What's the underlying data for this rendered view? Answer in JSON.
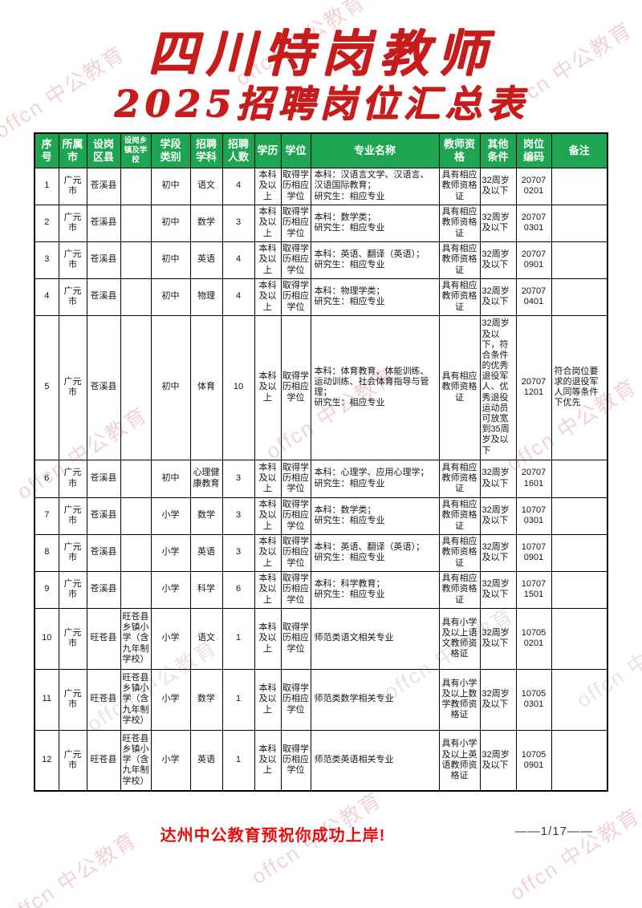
{
  "watermark": {
    "text": "offcn 中公教育"
  },
  "title": {
    "line1": "四川特岗教师",
    "line2": "2025招聘岗位汇总表",
    "color": "#c61c1c"
  },
  "table": {
    "header_bg": "#1ea552",
    "headers": [
      "序\n号",
      "所属\n市",
      "设岗\n区县",
      "设岗乡\n镇及学\n校",
      "学段\n类别",
      "招聘\n学科",
      "招聘\n人数",
      "学历",
      "学位",
      "专业名称",
      "教师资\n格",
      "其他\n条件",
      "岗位\n编码",
      "备注"
    ],
    "row_keys": [
      "no",
      "city",
      "county",
      "school",
      "level",
      "subject",
      "count",
      "edu",
      "degree",
      "major",
      "cert",
      "other",
      "code",
      "note"
    ],
    "rows": [
      {
        "no": "1",
        "city": "广元市",
        "county": "苍溪县",
        "school": "",
        "level": "初中",
        "subject": "语文",
        "count": "4",
        "edu": "本科及以上",
        "degree": "取得学历相应学位",
        "major": "本科：汉语言文学、汉语言、汉语国际教育；\n研究生：相应专业",
        "cert": "具有相应教师资格证",
        "other": "32周岁及以下",
        "code": "20707\n0201",
        "note": ""
      },
      {
        "no": "2",
        "city": "广元市",
        "county": "苍溪县",
        "school": "",
        "level": "初中",
        "subject": "数学",
        "count": "3",
        "edu": "本科及以上",
        "degree": "取得学历相应学位",
        "major": "本科：数学类；\n研究生：相应专业",
        "cert": "具有相应教师资格证",
        "other": "32周岁及以下",
        "code": "20707\n0301",
        "note": ""
      },
      {
        "no": "3",
        "city": "广元市",
        "county": "苍溪县",
        "school": "",
        "level": "初中",
        "subject": "英语",
        "count": "4",
        "edu": "本科及以上",
        "degree": "取得学历相应学位",
        "major": "本科：英语、翻译（英语）；\n研究生：相应专业",
        "cert": "具有相应教师资格证",
        "other": "32周岁及以下",
        "code": "20707\n0901",
        "note": ""
      },
      {
        "no": "4",
        "city": "广元市",
        "county": "苍溪县",
        "school": "",
        "level": "初中",
        "subject": "物理",
        "count": "4",
        "edu": "本科及以上",
        "degree": "取得学历相应学位",
        "major": "本科：物理学类；\n研究生：相应专业",
        "cert": "具有相应教师资格证",
        "other": "32周岁及以下",
        "code": "20707\n0401",
        "note": ""
      },
      {
        "no": "5",
        "city": "广元市",
        "county": "苍溪县",
        "school": "",
        "level": "初中",
        "subject": "体育",
        "count": "10",
        "edu": "本科及以上",
        "degree": "取得学历相应学位",
        "major": "本科：体育教育、体能训练、运动训练、社会体育指导与管理；\n研究生：相应专业",
        "cert": "具有相应教师资格证",
        "other": "32周岁及以下，符合条件的优秀退役军人、优秀退役运动员可放宽到35周岁及以下",
        "code": "20707\n1201",
        "note": "符合岗位要求的退役军人同等条件下优先"
      },
      {
        "no": "6",
        "city": "广元市",
        "county": "苍溪县",
        "school": "",
        "level": "初中",
        "subject": "心理健康教育",
        "count": "3",
        "edu": "本科及以上",
        "degree": "取得学历相应学位",
        "major": "本科：心理学、应用心理学；\n研究生：相应专业",
        "cert": "具有相应教师资格证",
        "other": "32周岁及以下",
        "code": "20707\n1601",
        "note": ""
      },
      {
        "no": "7",
        "city": "广元市",
        "county": "苍溪县",
        "school": "",
        "level": "小学",
        "subject": "数学",
        "count": "3",
        "edu": "本科及以上",
        "degree": "取得学历相应学位",
        "major": "本科：数学类；\n研究生：相应专业",
        "cert": "具有相应教师资格证",
        "other": "32周岁及以下",
        "code": "10707\n0301",
        "note": ""
      },
      {
        "no": "8",
        "city": "广元市",
        "county": "苍溪县",
        "school": "",
        "level": "小学",
        "subject": "英语",
        "count": "3",
        "edu": "本科及以上",
        "degree": "取得学历相应学位",
        "major": "本科：英语、翻译（英语）；\n研究生：相应专业",
        "cert": "具有相应教师资格证",
        "other": "32周岁及以下",
        "code": "10707\n0901",
        "note": ""
      },
      {
        "no": "9",
        "city": "广元市",
        "county": "苍溪县",
        "school": "",
        "level": "小学",
        "subject": "科学",
        "count": "6",
        "edu": "本科及以上",
        "degree": "取得学历相应学位",
        "major": "本科：科学教育；\n研究生：相应专业",
        "cert": "具有相应教师资格证",
        "other": "32周岁及以下",
        "code": "10707\n1501",
        "note": ""
      },
      {
        "no": "10",
        "city": "广元市",
        "county": "旺苍县",
        "school": "旺苍县乡镇小学（含九年制学校）",
        "level": "小学",
        "subject": "语文",
        "count": "1",
        "edu": "本科及以上",
        "degree": "取得学历相应学位",
        "major": "师范类语文相关专业",
        "cert": "具有小学及以上语文教师资格证",
        "other": "32周岁及以下",
        "code": "10705\n0201",
        "note": ""
      },
      {
        "no": "11",
        "city": "广元市",
        "county": "旺苍县",
        "school": "旺苍县乡镇小学（含九年制学校）",
        "level": "小学",
        "subject": "数学",
        "count": "1",
        "edu": "本科及以上",
        "degree": "取得学历相应学位",
        "major": "师范类数学相关专业",
        "cert": "具有小学及以上数学教师资格证",
        "other": "32周岁及以下",
        "code": "10705\n0301",
        "note": ""
      },
      {
        "no": "12",
        "city": "广元市",
        "county": "旺苍县",
        "school": "旺苍县乡镇小学（含九年制学校）",
        "level": "小学",
        "subject": "英语",
        "count": "1",
        "edu": "本科及以上",
        "degree": "取得学历相应学位",
        "major": "师范类英语相关专业",
        "cert": "具有小学及以上英语教师资格证",
        "other": "32周岁及以下",
        "code": "10705\n0901",
        "note": ""
      }
    ]
  },
  "footer": {
    "slogan": "达州中公教育预祝你成功上岸!",
    "page": "——1/17——"
  }
}
